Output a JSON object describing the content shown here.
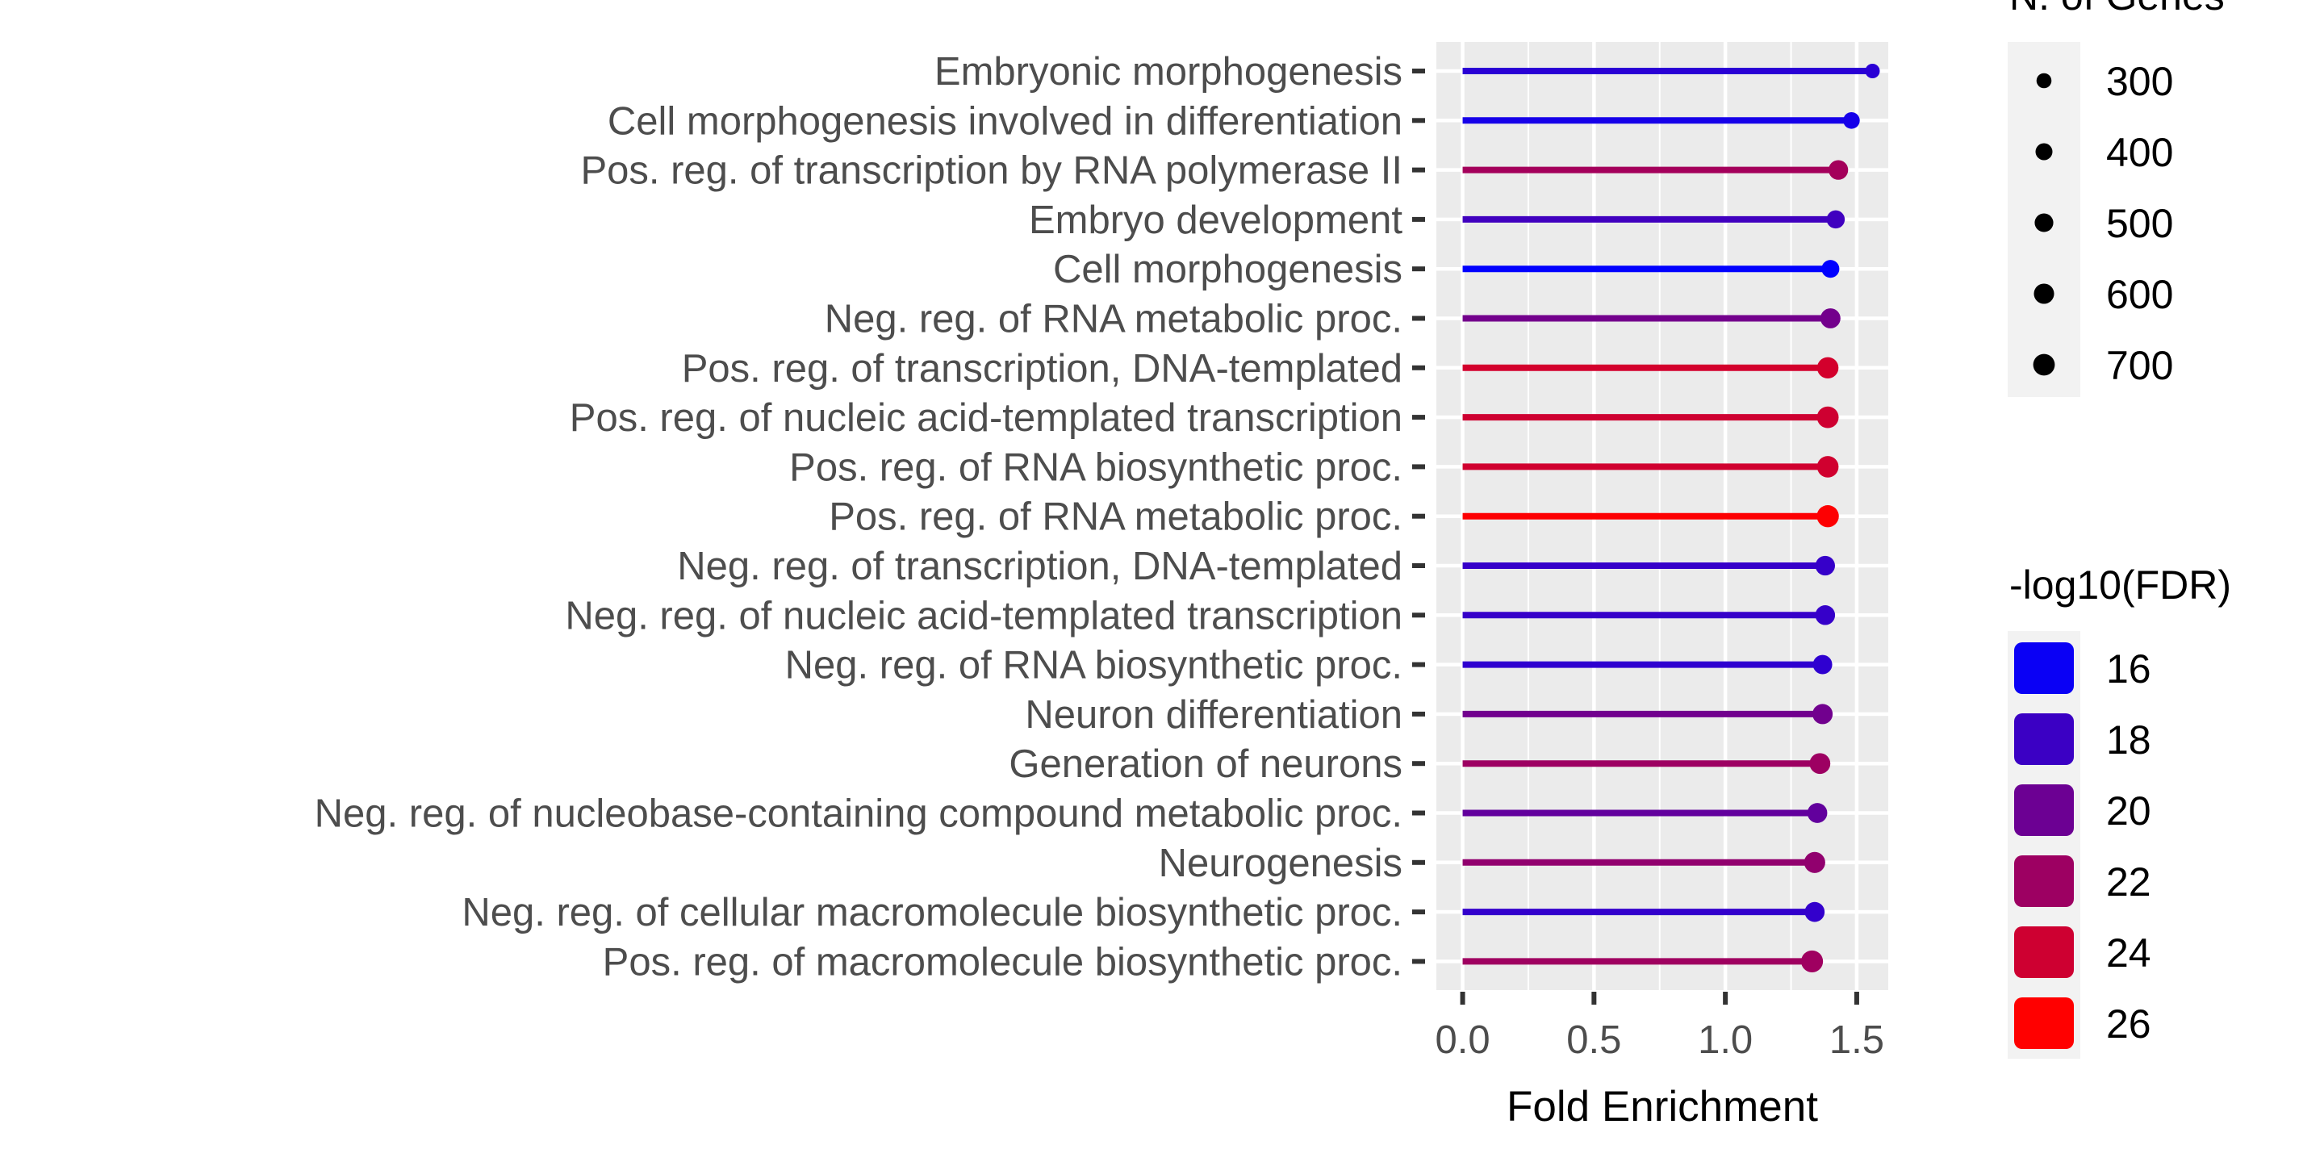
{
  "chart_data": {
    "type": "lollipop",
    "orientation": "horizontal",
    "categories": [
      "Embryonic morphogenesis",
      "Cell morphogenesis involved in differentiation",
      "Pos. reg. of transcription by RNA polymerase II",
      "Embryo development",
      "Cell morphogenesis",
      "Neg. reg. of RNA metabolic proc.",
      "Pos. reg. of transcription, DNA-templated",
      "Pos. reg. of nucleic acid-templated transcription",
      "Pos. reg. of RNA biosynthetic proc.",
      "Pos. reg. of RNA metabolic proc.",
      "Neg. reg. of transcription, DNA-templated",
      "Neg. reg. of nucleic acid-templated transcription",
      "Neg. reg. of RNA biosynthetic proc.",
      "Neuron differentiation",
      "Generation of neurons",
      "Neg. reg. of nucleobase-containing compound metabolic proc.",
      "Neurogenesis",
      "Neg. reg. of cellular macromolecule biosynthetic proc.",
      "Pos. reg. of macromolecule biosynthetic proc."
    ],
    "fold_enrichment": [
      1.56,
      1.48,
      1.43,
      1.42,
      1.4,
      1.4,
      1.39,
      1.39,
      1.39,
      1.39,
      1.38,
      1.38,
      1.37,
      1.37,
      1.36,
      1.35,
      1.34,
      1.34,
      1.33
    ],
    "n_genes": [
      280,
      380,
      560,
      470,
      450,
      590,
      680,
      700,
      690,
      730,
      560,
      570,
      540,
      600,
      640,
      580,
      660,
      580,
      720
    ],
    "neg_log10_fdr": [
      17.3,
      16.5,
      22.3,
      18.2,
      15.6,
      20.3,
      24.2,
      24.0,
      24.1,
      25.9,
      17.8,
      17.8,
      17.5,
      20.2,
      22.0,
      19.6,
      21.5,
      17.7,
      22.1
    ],
    "xlabel": "Fold Enrichment",
    "xlim": [
      -0.1,
      1.62
    ],
    "x_ticks": [
      "0.0",
      "0.5",
      "1.0",
      "1.5"
    ],
    "x_tick_values": [
      0,
      0.5,
      1.0,
      1.5
    ],
    "grid": true,
    "panel_background": "#ebebeb",
    "legend_placement": "right",
    "size_legend": {
      "title": "N. of Genes",
      "values": [
        300,
        400,
        500,
        600,
        700
      ],
      "labels": [
        "300",
        "400",
        "500",
        "600",
        "700"
      ]
    },
    "color_legend": {
      "title": "-log10(FDR)",
      "values": [
        16,
        18,
        20,
        22,
        24,
        26
      ],
      "labels": [
        "16",
        "18",
        "20",
        "22",
        "24",
        "26"
      ],
      "low_color": "#0000ff",
      "high_color": "#ff0000",
      "range": [
        15.6,
        26
      ]
    }
  }
}
